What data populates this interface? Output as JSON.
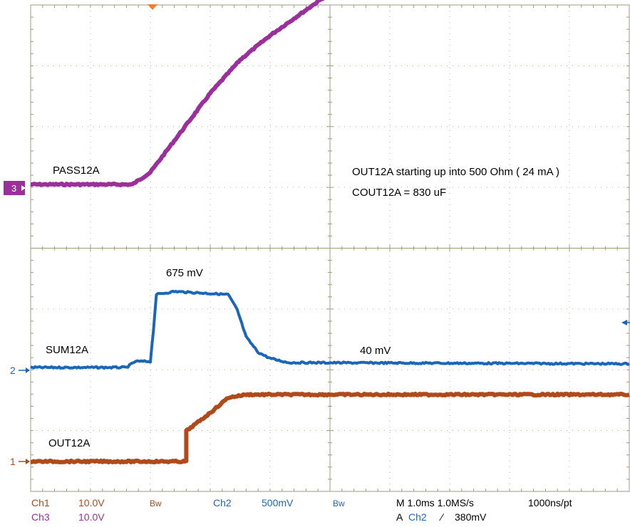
{
  "chart_data": {
    "type": "line",
    "title": "",
    "xlabel": "",
    "ylabel": "",
    "grid": true,
    "x_divisions": 10,
    "y_divisions": 8,
    "time_per_div_ms": 1.0,
    "series": [
      {
        "name": "PASS12A",
        "channel": "3",
        "color": "#9b2f9b",
        "points": [
          [
            0,
            0
          ],
          [
            1.7,
            0
          ],
          [
            2.0,
            0.2
          ],
          [
            2.5,
            0.85
          ],
          [
            3.0,
            1.5
          ],
          [
            3.5,
            2.05
          ],
          [
            4.0,
            2.45
          ],
          [
            4.5,
            2.8
          ],
          [
            5.0,
            3.15
          ],
          [
            5.5,
            3.5
          ],
          [
            5.7,
            3.6
          ],
          [
            10,
            3.6
          ]
        ]
      },
      {
        "name": "SUM12A",
        "channel": "2",
        "color": "#1c66b8",
        "points": [
          [
            0,
            0
          ],
          [
            1.6,
            0
          ],
          [
            1.75,
            0.1
          ],
          [
            2.0,
            0.1
          ],
          [
            2.05,
            0.6
          ],
          [
            2.1,
            1.2
          ],
          [
            2.4,
            1.25
          ],
          [
            3.3,
            1.2
          ],
          [
            3.45,
            0.95
          ],
          [
            3.6,
            0.5
          ],
          [
            3.8,
            0.25
          ],
          [
            4.0,
            0.15
          ],
          [
            4.3,
            0.08
          ],
          [
            10,
            0.06
          ]
        ]
      },
      {
        "name": "OUT12A",
        "channel": "1",
        "color": "#b04a1a",
        "points": [
          [
            0,
            0
          ],
          [
            2.6,
            0
          ],
          [
            2.6,
            0.5
          ],
          [
            3.0,
            0.8
          ],
          [
            3.3,
            1.05
          ],
          [
            3.6,
            1.1
          ],
          [
            10,
            1.1
          ]
        ]
      }
    ],
    "annotations": [
      {
        "id": "pass",
        "text": "PASS12A"
      },
      {
        "id": "note1",
        "text": "OUT12A starting up into 500 Ohm ( 24 mA )"
      },
      {
        "id": "note2",
        "text": "COUT12A = 830 uF"
      },
      {
        "id": "peak",
        "text": "675 mV"
      },
      {
        "id": "sum",
        "text": "SUM12A"
      },
      {
        "id": "steady",
        "text": "40 mV"
      },
      {
        "id": "out",
        "text": "OUT12A"
      }
    ],
    "channel_markers": [
      "3",
      "2",
      "1"
    ],
    "trigger_marker_color": "#f07f26"
  },
  "status_bar": {
    "ch1": "Ch1",
    "ch1_scale": "10.0V",
    "bw1": "Bw",
    "ch2": "Ch2",
    "ch2_scale": "500mV",
    "bw2": "Bw",
    "timebase": "M 1.0ms 1.0MS/s",
    "pt_interval": "1000ns/pt",
    "ch3": "Ch3",
    "ch3_scale": "10.0V",
    "trigger_prefix": "A",
    "trigger_source": "Ch2",
    "trigger_slope": "∕",
    "trigger_level": "380mV"
  }
}
